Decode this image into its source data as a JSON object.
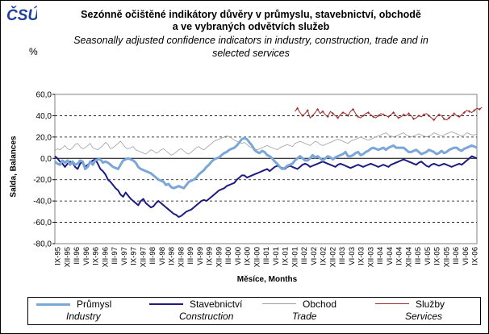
{
  "header": {
    "logo_text": "ČSÚ",
    "title_cz_line1": "Sezónně očištěné indikátory důvěry v průmyslu, stavebnictví, obchodě",
    "title_cz_line2": "a ve vybraných odvětvích služeb",
    "title_en_line1": "Seasonally adjusted confidence indicators in industry, construction, trade and in",
    "title_en_line2": "selected services",
    "unit": "%"
  },
  "chart_data": {
    "type": "line",
    "ylabel": "Salda, Balances",
    "xlabel": "Měsíce, Months",
    "ylim": [
      -80,
      60
    ],
    "y_ticks": [
      "60,0",
      "40,0",
      "20,0",
      "0,0",
      "-20,0",
      "-40,0",
      "-60,0",
      "-80,0"
    ],
    "grid": "horizontal dashed",
    "legend_placement": "bottom",
    "x_tick_labels": [
      "IX-95",
      "XII-95",
      "III-96",
      "VI-96",
      "IX-96",
      "XII-96",
      "III-97",
      "VI-97",
      "IX-97",
      "XII-97",
      "III-98",
      "VI-98",
      "IX-98",
      "XII-98",
      "III-99",
      "VI-99",
      "IX-99",
      "XII-99",
      "III-00",
      "VI-00",
      "IX-00",
      "XII-00",
      "III-01",
      "VI-01",
      "IX-01",
      "XII-01",
      "III-02",
      "VI-02",
      "IX-02",
      "XII-02",
      "III-03",
      "VI-03",
      "IX-03",
      "XII-03",
      "III-04",
      "VI-04",
      "IX-04",
      "XII-04",
      "III-05",
      "VI-05",
      "IX-05",
      "XII-05",
      "III-06",
      "VI-06",
      "IX-06"
    ],
    "series": [
      {
        "name": "Průmysl",
        "name_en": "Industry",
        "color": "#7aa6d8",
        "values": [
          -3,
          -5,
          -6,
          -2,
          -4,
          -2,
          -6,
          -3,
          -6,
          -5,
          -2,
          -3,
          -10,
          -8,
          -3,
          -6,
          -2,
          -1,
          -1,
          -4,
          -3,
          -4,
          -6,
          -8,
          -9,
          -10,
          -6,
          -2,
          -1,
          0,
          -1,
          -2,
          -4,
          -8,
          -10,
          -11,
          -12,
          -13,
          -14,
          -16,
          -18,
          -20,
          -21,
          -22,
          -25,
          -24,
          -27,
          -28,
          -27,
          -26,
          -27,
          -28,
          -25,
          -22,
          -21,
          -20,
          -18,
          -15,
          -13,
          -11,
          -8,
          -6,
          -3,
          -1,
          0,
          1,
          3,
          5,
          6,
          8,
          9,
          10,
          12,
          15,
          18,
          19,
          18,
          15,
          12,
          8,
          6,
          5,
          7,
          6,
          3,
          2,
          0,
          -3,
          -5,
          -8,
          -10,
          -9,
          -7,
          -6,
          -5,
          -2,
          0,
          2,
          0,
          -2,
          -2,
          0,
          3,
          1,
          2,
          0,
          -2,
          0,
          2,
          1,
          -1,
          1,
          2,
          3,
          4,
          6,
          2,
          2,
          3,
          5,
          6,
          3,
          4,
          6,
          7,
          9,
          10,
          9,
          8,
          9,
          10,
          8,
          10,
          11,
          12,
          10,
          10,
          10,
          10,
          8,
          6,
          6,
          7,
          8,
          6,
          4,
          5,
          6,
          8,
          7,
          6,
          4,
          5,
          7,
          5,
          6,
          8,
          9,
          10,
          10,
          8,
          7,
          9,
          10,
          11,
          12,
          11,
          10
        ]
      },
      {
        "name": "Stavebnictví",
        "name_en": "Construction",
        "color": "#1c1c80",
        "values": [
          2,
          0,
          -3,
          -5,
          -8,
          -5,
          -3,
          -4,
          -8,
          -10,
          -5,
          -3,
          -8,
          -6,
          -4,
          -2,
          -1,
          -5,
          -10,
          -12,
          -15,
          -20,
          -22,
          -25,
          -28,
          -30,
          -34,
          -36,
          -32,
          -35,
          -38,
          -40,
          -42,
          -44,
          -40,
          -38,
          -42,
          -44,
          -46,
          -45,
          -42,
          -40,
          -42,
          -44,
          -46,
          -48,
          -50,
          -52,
          -53,
          -55,
          -54,
          -52,
          -50,
          -49,
          -48,
          -46,
          -44,
          -42,
          -40,
          -39,
          -40,
          -38,
          -36,
          -34,
          -32,
          -30,
          -29,
          -28,
          -26,
          -25,
          -24,
          -23,
          -20,
          -18,
          -16,
          -16,
          -18,
          -17,
          -16,
          -15,
          -14,
          -13,
          -12,
          -11,
          -10,
          -12,
          -10,
          -8,
          -7,
          -8,
          -9,
          -10,
          -8,
          -7,
          -8,
          -9,
          -10,
          -8,
          -6,
          -5,
          -6,
          -8,
          -7,
          -6,
          -5,
          -4,
          -3,
          -4,
          -5,
          -6,
          -7,
          -8,
          -6,
          -5,
          -6,
          -7,
          -8,
          -9,
          -8,
          -7,
          -6,
          -7,
          -8,
          -7,
          -6,
          -5,
          -6,
          -7,
          -8,
          -7,
          -6,
          -7,
          -8,
          -6,
          -5,
          -4,
          -3,
          -2,
          -1,
          -2,
          -3,
          -4,
          -5,
          -6,
          -4,
          -3,
          -5,
          -7,
          -8,
          -6,
          -5,
          -6,
          -7,
          -6,
          -5,
          -6,
          -7,
          -8,
          -7,
          -6,
          -5,
          -6,
          -4,
          -2,
          0,
          2,
          1,
          0
        ]
      },
      {
        "name": "Obchod",
        "name_en": "Trade",
        "color": "#a0a0a0",
        "values": [
          7,
          9,
          8,
          10,
          12,
          9,
          8,
          10,
          13,
          14,
          11,
          9,
          10,
          12,
          14,
          10,
          9,
          8,
          10,
          12,
          15,
          13,
          9,
          10,
          12,
          14,
          16,
          13,
          10,
          9,
          10,
          11,
          8,
          7,
          6,
          5,
          4,
          6,
          8,
          7,
          5,
          6,
          8,
          9,
          7,
          5,
          3,
          4,
          6,
          8,
          9,
          7,
          5,
          4,
          6,
          8,
          10,
          11,
          9,
          8,
          10,
          12,
          14,
          16,
          17,
          18,
          19,
          20,
          21,
          20,
          19,
          17,
          16,
          15,
          14,
          15,
          13,
          11,
          10,
          9,
          8,
          9,
          10,
          11,
          12,
          11,
          10,
          9,
          8,
          10,
          11,
          12,
          13,
          12,
          11,
          14,
          15,
          16,
          15,
          14,
          13,
          12,
          14,
          16,
          15,
          13,
          12,
          13,
          14,
          15,
          16,
          17,
          18,
          17,
          16,
          15,
          14,
          16,
          17,
          18,
          19,
          20,
          19,
          18,
          17,
          18,
          19,
          20,
          21,
          22,
          23,
          24,
          22,
          21,
          20,
          21,
          22,
          23,
          24,
          22,
          21,
          20,
          21,
          22,
          23,
          22,
          21,
          20,
          21,
          22,
          24,
          23,
          22,
          21,
          22,
          23,
          24,
          25,
          24,
          23,
          22,
          21,
          22,
          24,
          23,
          22,
          22,
          23
        ]
      },
      {
        "name": "Služby",
        "name_en": "Services",
        "color": "#9b2a2a",
        "values": [
          null,
          null,
          null,
          null,
          null,
          null,
          null,
          null,
          null,
          null,
          null,
          null,
          null,
          null,
          null,
          null,
          null,
          null,
          null,
          null,
          null,
          null,
          null,
          null,
          null,
          null,
          null,
          null,
          null,
          null,
          null,
          null,
          null,
          null,
          null,
          null,
          null,
          null,
          null,
          null,
          null,
          null,
          null,
          null,
          null,
          null,
          null,
          null,
          null,
          null,
          null,
          null,
          null,
          null,
          null,
          null,
          null,
          null,
          null,
          null,
          null,
          null,
          null,
          null,
          null,
          null,
          null,
          null,
          null,
          null,
          null,
          null,
          null,
          null,
          null,
          null,
          null,
          null,
          null,
          null,
          null,
          null,
          null,
          null,
          null,
          null,
          null,
          null,
          null,
          null,
          null,
          null,
          null,
          null,
          null,
          44,
          47,
          43,
          40,
          42,
          45,
          38,
          40,
          43,
          46,
          42,
          44,
          41,
          39,
          44,
          42,
          40,
          38,
          41,
          43,
          42,
          40,
          44,
          46,
          42,
          39,
          38,
          40,
          42,
          43,
          41,
          39,
          38,
          40,
          42,
          41,
          40,
          39,
          41,
          43,
          40,
          38,
          39,
          41,
          40,
          42,
          40,
          37,
          38,
          40,
          39,
          41,
          42,
          40,
          38,
          36,
          39,
          41,
          40,
          37,
          36,
          38,
          40,
          42,
          40,
          39,
          41,
          43,
          45,
          44,
          43,
          45,
          47,
          46,
          48
        ]
      }
    ]
  }
}
